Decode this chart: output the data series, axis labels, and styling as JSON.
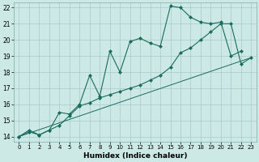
{
  "title": "",
  "xlabel": "Humidex (Indice chaleur)",
  "ylabel": "",
  "xlim": [
    -0.5,
    23.5
  ],
  "ylim": [
    13.7,
    22.3
  ],
  "xticks": [
    0,
    1,
    2,
    3,
    4,
    5,
    6,
    7,
    8,
    9,
    10,
    11,
    12,
    13,
    14,
    15,
    16,
    17,
    18,
    19,
    20,
    21,
    22,
    23
  ],
  "yticks": [
    14,
    15,
    16,
    17,
    18,
    19,
    20,
    21,
    22
  ],
  "bg_color": "#cce9e5",
  "line_color": "#1a6b5e",
  "line1_x": [
    0,
    1,
    2,
    3,
    4,
    5,
    6,
    7,
    8,
    9,
    10,
    11,
    12,
    13,
    14,
    15,
    16,
    17,
    18,
    19,
    20,
    21,
    22
  ],
  "line1_y": [
    14.0,
    14.4,
    14.1,
    14.4,
    15.5,
    15.4,
    16.0,
    17.8,
    16.5,
    19.3,
    18.0,
    19.9,
    20.1,
    19.8,
    19.6,
    22.1,
    22.0,
    21.4,
    21.1,
    21.0,
    21.1,
    19.0,
    19.3
  ],
  "line2_x": [
    0,
    1,
    2,
    3,
    4,
    5,
    6,
    7,
    8,
    9,
    10,
    11,
    12,
    13,
    14,
    15,
    16,
    17,
    18,
    19,
    20,
    21,
    22,
    23
  ],
  "line2_y": [
    14.0,
    14.3,
    14.1,
    14.4,
    14.7,
    15.3,
    15.9,
    16.1,
    16.4,
    16.6,
    16.8,
    17.0,
    17.2,
    17.5,
    17.8,
    18.3,
    19.2,
    19.5,
    20.0,
    20.5,
    21.0,
    21.0,
    18.5,
    18.9
  ],
  "line3_x": [
    0,
    23
  ],
  "line3_y": [
    14.0,
    18.9
  ],
  "markersize": 2.5
}
